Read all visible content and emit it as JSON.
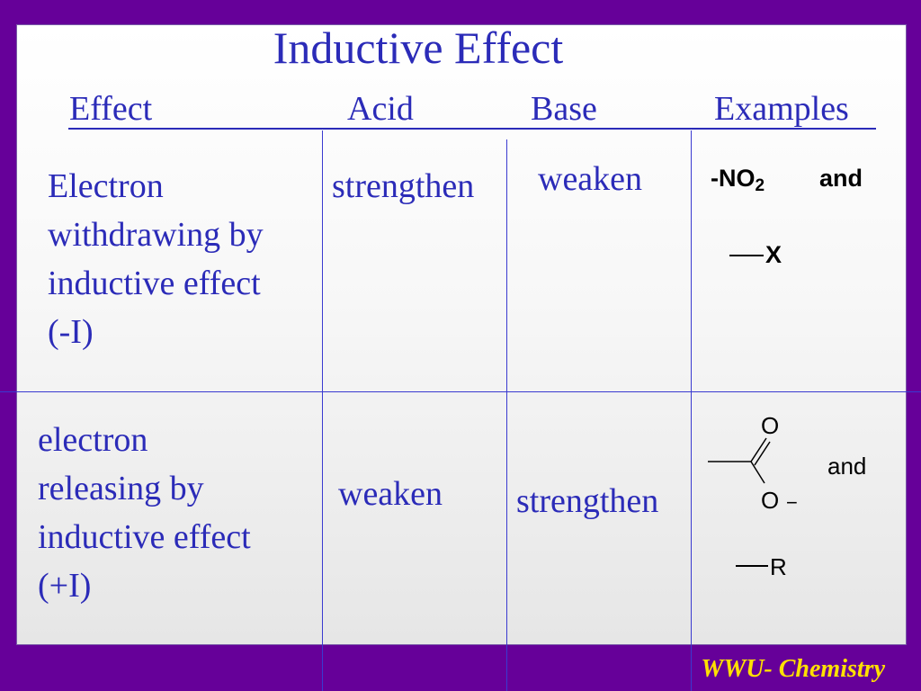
{
  "title": "Inductive Effect",
  "headers": {
    "effect": "Effect",
    "acid": "Acid",
    "base": "Base",
    "examples": "Examples"
  },
  "rows": [
    {
      "effect_lines": [
        "Electron",
        "withdrawing by",
        "inductive effect",
        "(-I)"
      ],
      "acid": "strengthen",
      "base": "weaken",
      "examples": {
        "group1": "-NO",
        "group1_sub": "2",
        "and": "and",
        "group2": "X"
      }
    },
    {
      "effect_lines": [
        "electron",
        "releasing by",
        "inductive effect",
        "(+I)"
      ],
      "acid": "weaken",
      "base": "strengthen",
      "examples": {
        "carboxylate_o_top": "O",
        "carboxylate_o_bottom": "O",
        "charge": "−",
        "and": "and",
        "group2": "R"
      }
    }
  ],
  "footer": "WWU- Chemistry"
}
